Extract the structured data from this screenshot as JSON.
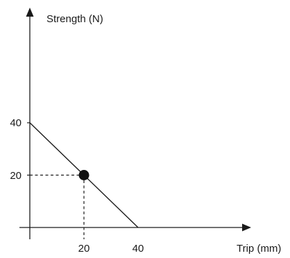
{
  "chart_data": {
    "type": "line",
    "title": "",
    "xlabel": "Trip (mm)",
    "ylabel": "Strength (N)",
    "xlim": [
      0,
      40
    ],
    "ylim": [
      0,
      40
    ],
    "x_ticks": [
      "20",
      "40"
    ],
    "y_ticks": [
      "20",
      "40"
    ],
    "grid": false,
    "legend": "none",
    "series": [
      {
        "x": [
          0,
          40
        ],
        "y": [
          40,
          0
        ]
      }
    ],
    "highlight_point": {
      "x": 20,
      "y": 20
    },
    "colors": {
      "line": "#1a1a1a",
      "point": "#111111"
    }
  }
}
